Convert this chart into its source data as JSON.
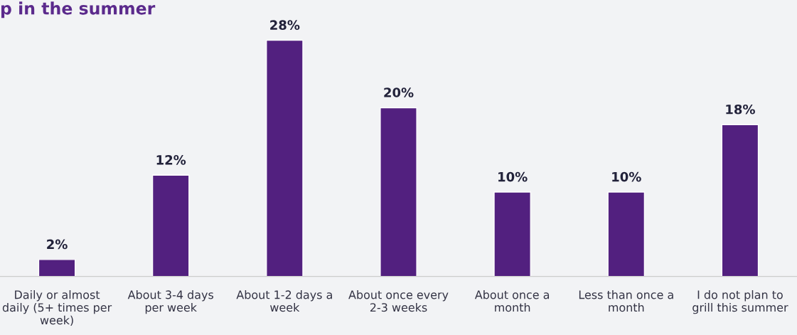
{
  "chart_data": {
    "type": "bar",
    "title": "p in the summer",
    "categories": [
      "Daily or almost\ndaily (5+ times per\nweek)",
      "About 3-4 days\nper week",
      "About 1-2 days a\nweek",
      "About once every\n2-3 weeks",
      "About once a\nmonth",
      "Less than once a\nmonth",
      "I do not plan to\ngrill this summer"
    ],
    "values": [
      2,
      12,
      28,
      20,
      10,
      10,
      18
    ],
    "value_labels": [
      "2%",
      "12%",
      "28%",
      "20%",
      "10%",
      "10%",
      "18%"
    ],
    "color": "#52207f",
    "grid": false,
    "legend": false
  }
}
